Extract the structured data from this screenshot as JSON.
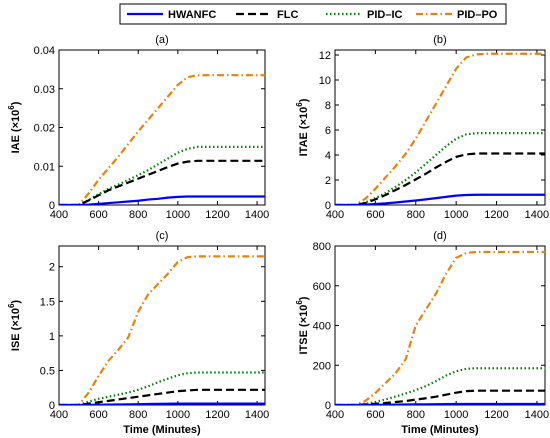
{
  "legend": {
    "placement": "top",
    "entries": [
      {
        "label": "HWANFC"
      },
      {
        "label": "FLC"
      },
      {
        "label": "PID–IC"
      },
      {
        "label": "PID–PO"
      }
    ]
  },
  "styles": {
    "HWANFC": {
      "color": "#0000ff",
      "dash": "solid"
    },
    "FLC": {
      "color": "#000000",
      "dash": "dashed"
    },
    "PID–IC": {
      "color": "#008000",
      "dash": "dotted"
    },
    "PID–PO": {
      "color": "#e8820c",
      "dash": "dash-dot"
    }
  },
  "chart_data": [
    {
      "type": "line",
      "panel": "(a)",
      "ylabel_base": "IAE (×10",
      "ylabel_exp": "6",
      "ylabel_close": ")",
      "xlabel": "",
      "xlim": [
        400,
        1440
      ],
      "ylim": [
        0,
        0.04
      ],
      "xticks": [
        "400",
        "600",
        "800",
        "1000",
        "1200",
        "1400"
      ],
      "yticks": [
        "0",
        "0.01",
        "0.02",
        "0.03",
        "0.04"
      ],
      "x": [
        400,
        450,
        500,
        550,
        600,
        650,
        700,
        750,
        800,
        850,
        900,
        950,
        1000,
        1050,
        1100,
        1150,
        1200,
        1440
      ],
      "series": [
        {
          "name": "HWANFC",
          "values": [
            0,
            0,
            0,
            0.0001,
            0.0003,
            0.0005,
            0.0007,
            0.0009,
            0.0011,
            0.0014,
            0.0016,
            0.0019,
            0.0021,
            0.0022,
            0.0022,
            0.0022,
            0.0022,
            0.0022
          ]
        },
        {
          "name": "FLC",
          "values": [
            0,
            0,
            0,
            0.0012,
            0.0025,
            0.0038,
            0.0048,
            0.0058,
            0.0068,
            0.0078,
            0.0088,
            0.0098,
            0.0107,
            0.0112,
            0.0114,
            0.0114,
            0.0114,
            0.0114
          ]
        },
        {
          "name": "PID–IC",
          "values": [
            0,
            0,
            0,
            0.0013,
            0.0028,
            0.0042,
            0.0053,
            0.0065,
            0.0077,
            0.009,
            0.0105,
            0.012,
            0.0135,
            0.0145,
            0.015,
            0.015,
            0.015,
            0.015
          ]
        },
        {
          "name": "PID–PO",
          "values": [
            0,
            0,
            0,
            0.003,
            0.0065,
            0.0095,
            0.0125,
            0.0158,
            0.019,
            0.022,
            0.025,
            0.028,
            0.031,
            0.033,
            0.0335,
            0.0335,
            0.0335,
            0.0335
          ]
        }
      ]
    },
    {
      "type": "line",
      "panel": "(b)",
      "ylabel_base": "ITAE (×10",
      "ylabel_exp": "6",
      "ylabel_close": ")",
      "xlabel": "",
      "xlim": [
        400,
        1440
      ],
      "ylim": [
        0,
        12.4
      ],
      "xticks": [
        "400",
        "600",
        "800",
        "1000",
        "1200",
        "1400"
      ],
      "yticks": [
        "0",
        "2",
        "4",
        "6",
        "8",
        "10",
        "12"
      ],
      "x": [
        400,
        450,
        500,
        550,
        600,
        650,
        700,
        750,
        800,
        850,
        900,
        950,
        1000,
        1050,
        1100,
        1150,
        1200,
        1440
      ],
      "series": [
        {
          "name": "HWANFC",
          "values": [
            0,
            0,
            0,
            0.03,
            0.08,
            0.13,
            0.2,
            0.28,
            0.36,
            0.45,
            0.55,
            0.65,
            0.75,
            0.8,
            0.82,
            0.82,
            0.82,
            0.82
          ]
        },
        {
          "name": "FLC",
          "values": [
            0,
            0,
            0,
            0.15,
            0.45,
            0.8,
            1.2,
            1.6,
            2.05,
            2.5,
            3.0,
            3.45,
            3.85,
            4.05,
            4.12,
            4.12,
            4.12,
            4.12
          ]
        },
        {
          "name": "PID–IC",
          "values": [
            0,
            0,
            0,
            0.2,
            0.55,
            0.95,
            1.45,
            2.0,
            2.6,
            3.3,
            4.0,
            4.7,
            5.3,
            5.65,
            5.75,
            5.75,
            5.75,
            5.75
          ]
        },
        {
          "name": "PID–PO",
          "values": [
            0,
            0,
            0,
            0.5,
            1.3,
            2.2,
            3.1,
            4.1,
            5.3,
            6.7,
            8.1,
            9.5,
            10.9,
            11.8,
            12.05,
            12.1,
            12.1,
            12.1
          ]
        }
      ]
    },
    {
      "type": "line",
      "panel": "(c)",
      "ylabel_base": "ISE (×10",
      "ylabel_exp": "6",
      "ylabel_close": ")",
      "xlabel": "Time (Minutes)",
      "xlim": [
        400,
        1440
      ],
      "ylim": [
        0,
        2.3
      ],
      "xticks": [
        "400",
        "600",
        "800",
        "1000",
        "1200",
        "1400"
      ],
      "yticks": [
        "0",
        "0.5",
        "1",
        "1.5",
        "2"
      ],
      "x": [
        400,
        450,
        500,
        550,
        600,
        650,
        700,
        750,
        800,
        850,
        900,
        950,
        1000,
        1050,
        1100,
        1150,
        1200,
        1440
      ],
      "series": [
        {
          "name": "HWANFC",
          "values": [
            0,
            0,
            0,
            0.002,
            0.004,
            0.006,
            0.008,
            0.01,
            0.012,
            0.014,
            0.016,
            0.018,
            0.02,
            0.02,
            0.02,
            0.02,
            0.02,
            0.02
          ]
        },
        {
          "name": "FLC",
          "values": [
            0,
            0,
            0,
            0.02,
            0.04,
            0.06,
            0.08,
            0.1,
            0.12,
            0.14,
            0.16,
            0.18,
            0.2,
            0.21,
            0.22,
            0.22,
            0.22,
            0.22
          ]
        },
        {
          "name": "PID–IC",
          "values": [
            0,
            0,
            0,
            0.05,
            0.09,
            0.12,
            0.15,
            0.18,
            0.22,
            0.27,
            0.33,
            0.38,
            0.43,
            0.46,
            0.47,
            0.47,
            0.47,
            0.47
          ]
        },
        {
          "name": "PID–PO",
          "values": [
            0,
            0,
            0,
            0.18,
            0.42,
            0.64,
            0.8,
            0.98,
            1.35,
            1.6,
            1.75,
            1.9,
            2.07,
            2.14,
            2.15,
            2.15,
            2.15,
            2.15
          ]
        }
      ]
    },
    {
      "type": "line",
      "panel": "(d)",
      "ylabel_base": "ITSE (×10",
      "ylabel_exp": "6",
      "ylabel_close": ")",
      "xlabel": "Time (Minutes)",
      "xlim": [
        400,
        1440
      ],
      "ylim": [
        0,
        800
      ],
      "xticks": [
        "400",
        "600",
        "800",
        "1000",
        "1200",
        "1400"
      ],
      "yticks": [
        "0",
        "200",
        "400",
        "600",
        "800"
      ],
      "x": [
        400,
        450,
        500,
        550,
        600,
        650,
        700,
        750,
        800,
        850,
        900,
        950,
        1000,
        1050,
        1100,
        1150,
        1200,
        1440
      ],
      "series": [
        {
          "name": "HWANFC",
          "values": [
            0,
            0,
            0,
            0.5,
            1,
            1.5,
            2,
            2.5,
            3,
            3.5,
            4,
            4.5,
            5,
            5,
            5,
            5,
            5,
            5
          ]
        },
        {
          "name": "FLC",
          "values": [
            0,
            0,
            0,
            3,
            6,
            10,
            15,
            20,
            27,
            34,
            42,
            52,
            62,
            70,
            72,
            72,
            72,
            72
          ]
        },
        {
          "name": "PID–IC",
          "values": [
            0,
            0,
            0,
            5,
            15,
            28,
            42,
            58,
            75,
            95,
            120,
            148,
            170,
            182,
            185,
            185,
            185,
            185
          ]
        },
        {
          "name": "PID–PO",
          "values": [
            0,
            0,
            0,
            20,
            60,
            110,
            160,
            230,
            400,
            480,
            560,
            660,
            740,
            765,
            770,
            770,
            770,
            770
          ]
        }
      ]
    }
  ]
}
